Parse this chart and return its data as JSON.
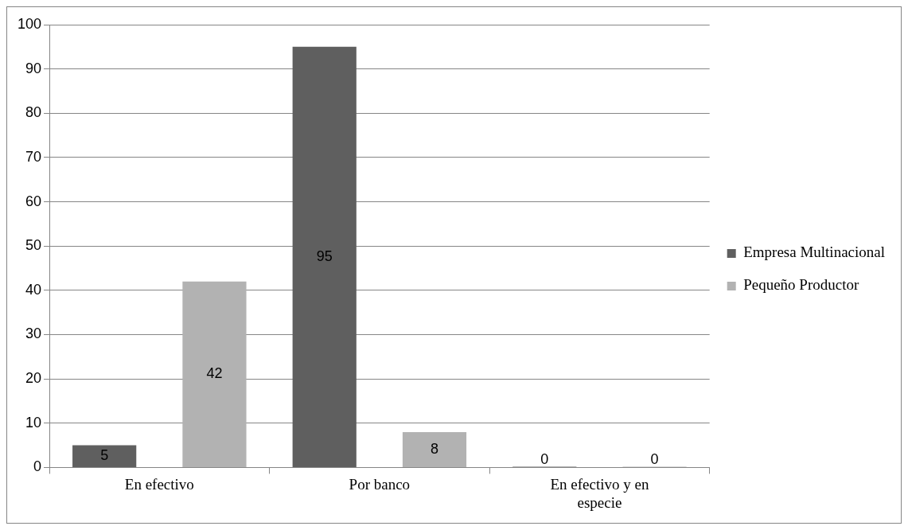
{
  "chart_data": {
    "type": "bar",
    "categories": [
      "En efectivo",
      "Por banco",
      "En efectivo y en especie"
    ],
    "series": [
      {
        "name": "Empresa Multinacional",
        "color": "#5f5f5f",
        "values": [
          5,
          95,
          0
        ]
      },
      {
        "name": "Pequeño Productor",
        "color": "#b2b2b2",
        "values": [
          42,
          8,
          0
        ]
      }
    ],
    "ylim": [
      0,
      100
    ],
    "yticks": [
      0,
      10,
      20,
      30,
      40,
      50,
      60,
      70,
      80,
      90,
      100
    ],
    "grid": "y",
    "legend": "right",
    "data_labels": true
  }
}
